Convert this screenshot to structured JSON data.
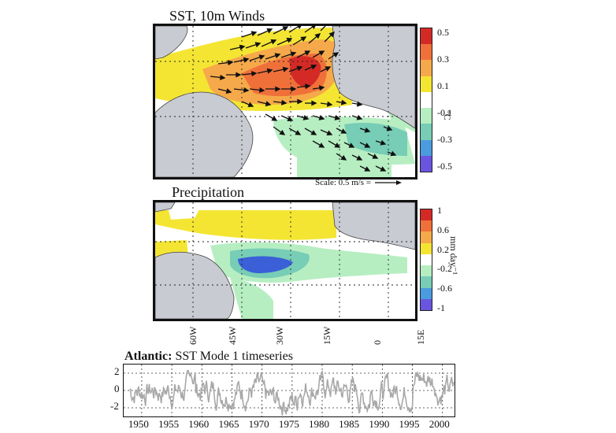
{
  "figure": {
    "panel_sst": {
      "title": "SST, 10m Winds",
      "colorbar_ticks": [
        "0.5",
        "0.3",
        "0.1",
        "-0.1",
        "-0.3",
        "-0.5"
      ],
      "colorbar_unit": "°C",
      "scale_label": "Scale: 0.5 m/s =",
      "colors": [
        "#d42a26",
        "#f0703a",
        "#f6a94a",
        "#f4e533",
        "#ffffff",
        "#b6eec2",
        "#77cdb5",
        "#4b9bdf",
        "#6a55e0"
      ]
    },
    "panel_precip": {
      "title": "Precipitation",
      "colorbar_ticks": [
        "1",
        "0.6",
        "0.2",
        "-0.2",
        "-0.6",
        "-1"
      ],
      "colorbar_unit": "mm day⁻¹",
      "colors": [
        "#d42a26",
        "#f0703a",
        "#f6a94a",
        "#f4e533",
        "#ffffff",
        "#b6eec2",
        "#77cdb5",
        "#4b9bdf",
        "#6a55e0"
      ]
    },
    "longitude_labels": [
      "60W",
      "45W",
      "30W",
      "15W",
      "0",
      "15E"
    ],
    "timeseries": {
      "title_bold": "Atlantic:",
      "title_rest": "SST Mode 1 timeseries",
      "y_ticks": [
        "2",
        "0",
        "-2"
      ],
      "years": [
        "1950",
        "1955",
        "1960",
        "1965",
        "1970",
        "1975",
        "1980",
        "1985",
        "1990",
        "1995",
        "2000"
      ],
      "line_color": "#a8a8a8"
    },
    "land_color": "#c9cbd2"
  }
}
